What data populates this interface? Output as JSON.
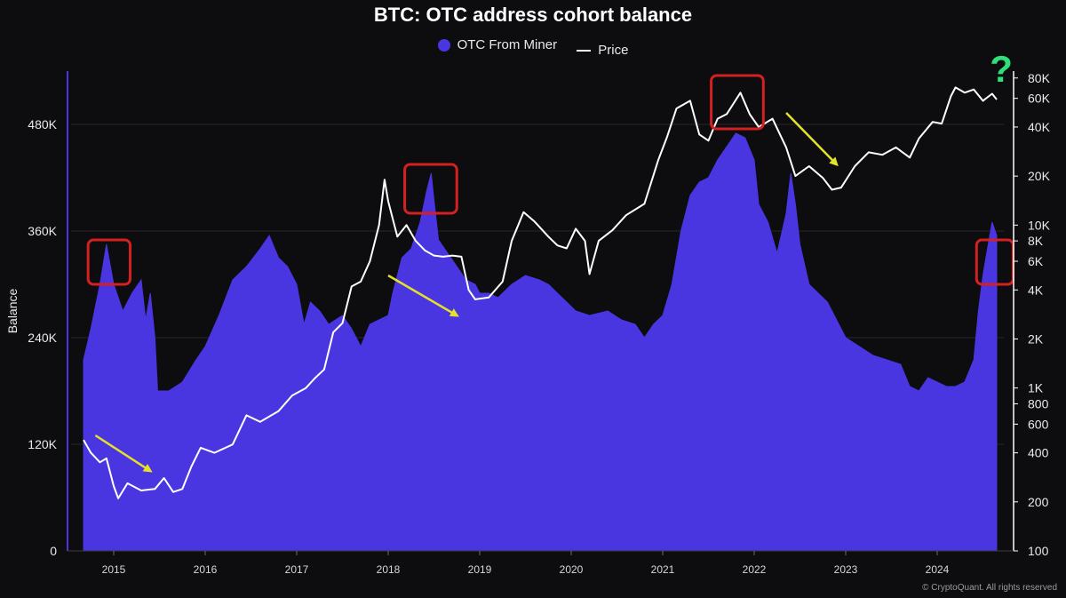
{
  "chart_data": {
    "type": "area",
    "title": "BTC: OTC address cohort balance",
    "ylabel": "Balance",
    "legend": [
      {
        "name": "OTC From Miner",
        "marker": "dot",
        "color": "#4a36e0"
      },
      {
        "name": "Price",
        "marker": "line",
        "color": "#ffffff"
      }
    ],
    "x_ticks": [
      "2015",
      "2016",
      "2017",
      "2018",
      "2019",
      "2020",
      "2021",
      "2022",
      "2023",
      "2024"
    ],
    "y_left": {
      "min": 0,
      "max": 550000,
      "ticks": [
        0,
        120000,
        240000,
        360000,
        480000
      ],
      "tick_labels": [
        "0",
        "120K",
        "240K",
        "360K",
        "480K"
      ]
    },
    "y_right": {
      "scale": "log",
      "min": 100,
      "max": 100000,
      "tick_values": [
        100,
        200,
        400,
        600,
        800,
        1000,
        2000,
        4000,
        6000,
        8000,
        10000,
        20000,
        40000,
        60000,
        80000
      ],
      "tick_labels": [
        "100",
        "200",
        "400",
        "600",
        "800",
        "1K",
        "2K",
        "4K",
        "6K",
        "8K",
        "10K",
        "20K",
        "40K",
        "60K",
        "80K"
      ]
    },
    "series": [
      {
        "name": "OTC From Miner",
        "axis": "left",
        "color": "#4a36e0",
        "points": [
          [
            2014.67,
            215000
          ],
          [
            2014.75,
            250000
          ],
          [
            2014.85,
            300000
          ],
          [
            2014.92,
            345000
          ],
          [
            2015.0,
            300000
          ],
          [
            2015.1,
            270000
          ],
          [
            2015.2,
            290000
          ],
          [
            2015.3,
            305000
          ],
          [
            2015.35,
            260000
          ],
          [
            2015.4,
            290000
          ],
          [
            2015.45,
            240000
          ],
          [
            2015.48,
            180000
          ],
          [
            2015.6,
            180000
          ],
          [
            2015.75,
            190000
          ],
          [
            2015.9,
            215000
          ],
          [
            2016.0,
            230000
          ],
          [
            2016.15,
            265000
          ],
          [
            2016.3,
            305000
          ],
          [
            2016.45,
            320000
          ],
          [
            2016.6,
            340000
          ],
          [
            2016.7,
            355000
          ],
          [
            2016.8,
            330000
          ],
          [
            2016.9,
            320000
          ],
          [
            2017.0,
            300000
          ],
          [
            2017.08,
            255000
          ],
          [
            2017.15,
            280000
          ],
          [
            2017.25,
            270000
          ],
          [
            2017.35,
            255000
          ],
          [
            2017.5,
            265000
          ],
          [
            2017.6,
            250000
          ],
          [
            2017.7,
            230000
          ],
          [
            2017.8,
            255000
          ],
          [
            2017.9,
            260000
          ],
          [
            2018.0,
            265000
          ],
          [
            2018.05,
            290000
          ],
          [
            2018.15,
            330000
          ],
          [
            2018.25,
            340000
          ],
          [
            2018.35,
            370000
          ],
          [
            2018.42,
            405000
          ],
          [
            2018.47,
            425000
          ],
          [
            2018.5,
            395000
          ],
          [
            2018.55,
            350000
          ],
          [
            2018.65,
            335000
          ],
          [
            2018.75,
            320000
          ],
          [
            2018.85,
            305000
          ],
          [
            2018.95,
            300000
          ],
          [
            2019.0,
            290000
          ],
          [
            2019.1,
            290000
          ],
          [
            2019.2,
            285000
          ],
          [
            2019.35,
            300000
          ],
          [
            2019.5,
            310000
          ],
          [
            2019.65,
            305000
          ],
          [
            2019.75,
            300000
          ],
          [
            2019.85,
            290000
          ],
          [
            2019.95,
            280000
          ],
          [
            2020.05,
            270000
          ],
          [
            2020.2,
            265000
          ],
          [
            2020.4,
            270000
          ],
          [
            2020.55,
            260000
          ],
          [
            2020.7,
            255000
          ],
          [
            2020.8,
            240000
          ],
          [
            2020.9,
            255000
          ],
          [
            2021.0,
            265000
          ],
          [
            2021.1,
            300000
          ],
          [
            2021.2,
            360000
          ],
          [
            2021.3,
            400000
          ],
          [
            2021.4,
            415000
          ],
          [
            2021.5,
            420000
          ],
          [
            2021.6,
            440000
          ],
          [
            2021.7,
            455000
          ],
          [
            2021.8,
            470000
          ],
          [
            2021.9,
            465000
          ],
          [
            2022.0,
            440000
          ],
          [
            2022.05,
            390000
          ],
          [
            2022.15,
            370000
          ],
          [
            2022.25,
            335000
          ],
          [
            2022.35,
            380000
          ],
          [
            2022.4,
            425000
          ],
          [
            2022.45,
            390000
          ],
          [
            2022.5,
            345000
          ],
          [
            2022.6,
            300000
          ],
          [
            2022.7,
            290000
          ],
          [
            2022.8,
            280000
          ],
          [
            2022.9,
            260000
          ],
          [
            2023.0,
            240000
          ],
          [
            2023.15,
            230000
          ],
          [
            2023.3,
            220000
          ],
          [
            2023.45,
            215000
          ],
          [
            2023.6,
            210000
          ],
          [
            2023.7,
            185000
          ],
          [
            2023.8,
            180000
          ],
          [
            2023.9,
            195000
          ],
          [
            2024.0,
            190000
          ],
          [
            2024.1,
            185000
          ],
          [
            2024.2,
            185000
          ],
          [
            2024.3,
            190000
          ],
          [
            2024.4,
            215000
          ],
          [
            2024.45,
            270000
          ],
          [
            2024.5,
            310000
          ],
          [
            2024.55,
            340000
          ],
          [
            2024.6,
            370000
          ],
          [
            2024.65,
            355000
          ]
        ]
      },
      {
        "name": "Price",
        "axis": "right",
        "color": "#ffffff",
        "points": [
          [
            2014.67,
            480
          ],
          [
            2014.75,
            400
          ],
          [
            2014.85,
            350
          ],
          [
            2014.92,
            370
          ],
          [
            2015.0,
            250
          ],
          [
            2015.05,
            210
          ],
          [
            2015.15,
            260
          ],
          [
            2015.3,
            235
          ],
          [
            2015.45,
            240
          ],
          [
            2015.55,
            280
          ],
          [
            2015.65,
            230
          ],
          [
            2015.75,
            240
          ],
          [
            2015.85,
            330
          ],
          [
            2015.95,
            430
          ],
          [
            2016.1,
            400
          ],
          [
            2016.3,
            450
          ],
          [
            2016.45,
            680
          ],
          [
            2016.6,
            620
          ],
          [
            2016.8,
            720
          ],
          [
            2016.95,
            900
          ],
          [
            2017.1,
            1000
          ],
          [
            2017.2,
            1150
          ],
          [
            2017.3,
            1300
          ],
          [
            2017.4,
            2200
          ],
          [
            2017.5,
            2500
          ],
          [
            2017.6,
            4200
          ],
          [
            2017.7,
            4500
          ],
          [
            2017.8,
            6000
          ],
          [
            2017.9,
            10000
          ],
          [
            2017.96,
            19000
          ],
          [
            2018.0,
            14000
          ],
          [
            2018.1,
            8500
          ],
          [
            2018.2,
            10000
          ],
          [
            2018.3,
            8000
          ],
          [
            2018.4,
            7000
          ],
          [
            2018.5,
            6500
          ],
          [
            2018.6,
            6400
          ],
          [
            2018.7,
            6500
          ],
          [
            2018.8,
            6400
          ],
          [
            2018.88,
            4000
          ],
          [
            2018.95,
            3500
          ],
          [
            2019.1,
            3600
          ],
          [
            2019.25,
            4500
          ],
          [
            2019.35,
            8000
          ],
          [
            2019.48,
            12000
          ],
          [
            2019.6,
            10500
          ],
          [
            2019.75,
            8500
          ],
          [
            2019.85,
            7500
          ],
          [
            2019.95,
            7200
          ],
          [
            2020.05,
            9500
          ],
          [
            2020.15,
            8000
          ],
          [
            2020.2,
            5000
          ],
          [
            2020.3,
            8000
          ],
          [
            2020.45,
            9300
          ],
          [
            2020.6,
            11500
          ],
          [
            2020.8,
            13500
          ],
          [
            2020.95,
            25000
          ],
          [
            2021.05,
            35000
          ],
          [
            2021.15,
            52000
          ],
          [
            2021.3,
            58000
          ],
          [
            2021.4,
            36000
          ],
          [
            2021.5,
            33000
          ],
          [
            2021.6,
            45000
          ],
          [
            2021.7,
            48000
          ],
          [
            2021.85,
            65000
          ],
          [
            2021.95,
            48000
          ],
          [
            2022.05,
            40000
          ],
          [
            2022.2,
            45000
          ],
          [
            2022.35,
            30000
          ],
          [
            2022.45,
            20000
          ],
          [
            2022.6,
            23000
          ],
          [
            2022.75,
            19500
          ],
          [
            2022.85,
            16500
          ],
          [
            2022.95,
            17000
          ],
          [
            2023.1,
            23000
          ],
          [
            2023.25,
            28000
          ],
          [
            2023.4,
            27000
          ],
          [
            2023.55,
            30000
          ],
          [
            2023.7,
            26000
          ],
          [
            2023.8,
            34000
          ],
          [
            2023.95,
            43000
          ],
          [
            2024.05,
            42000
          ],
          [
            2024.15,
            62000
          ],
          [
            2024.2,
            70000
          ],
          [
            2024.3,
            65000
          ],
          [
            2024.4,
            68000
          ],
          [
            2024.5,
            58000
          ],
          [
            2024.6,
            64000
          ],
          [
            2024.65,
            59000
          ]
        ]
      }
    ],
    "annotations": [
      {
        "type": "highlight-box",
        "color": "#d42020",
        "x_range": [
          2014.72,
          2015.18
        ],
        "y_range": [
          300000,
          350000
        ]
      },
      {
        "type": "highlight-box",
        "color": "#d42020",
        "x_range": [
          2018.18,
          2018.75
        ],
        "y_range": [
          380000,
          435000
        ]
      },
      {
        "type": "highlight-box",
        "color": "#d42020",
        "x_range": [
          2021.53,
          2022.1
        ],
        "y_range": [
          475000,
          535000
        ]
      },
      {
        "type": "highlight-box",
        "color": "#d42020",
        "x_range": [
          2024.43,
          2024.83
        ],
        "y_range": [
          300000,
          350000
        ]
      },
      {
        "type": "arrow",
        "color": "#e6e02a",
        "from": [
          2014.8,
          130000
        ],
        "to": [
          2015.4,
          90000
        ]
      },
      {
        "type": "arrow",
        "color": "#e6e02a",
        "from": [
          2018.0,
          310000
        ],
        "to": [
          2018.75,
          265000
        ]
      },
      {
        "type": "arrow",
        "color": "#e6e02a",
        "from": [
          2022.35,
          493000
        ],
        "to": [
          2022.9,
          435000
        ]
      },
      {
        "type": "question-mark",
        "color": "#2ee07a",
        "text": "?",
        "at": [
          2024.7,
          540000
        ]
      }
    ]
  },
  "footer": {
    "copyright": "© CryptoQuant. All rights reserved"
  }
}
